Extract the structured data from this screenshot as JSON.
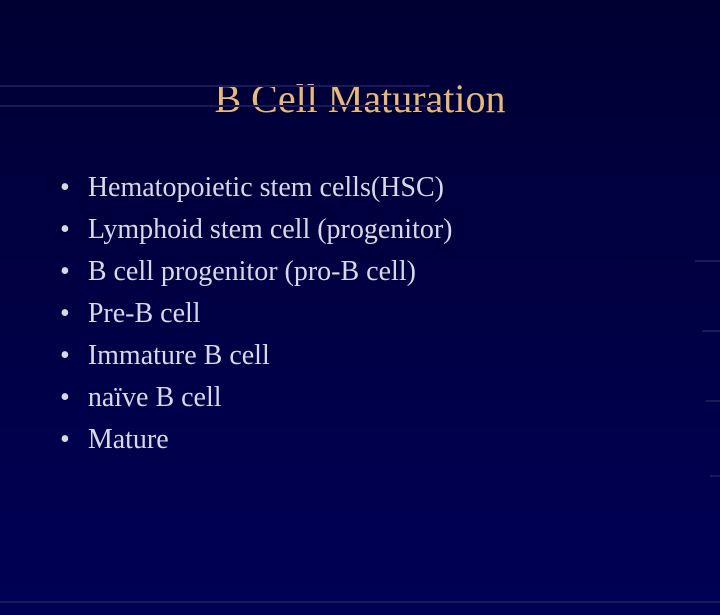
{
  "slide": {
    "title": "B Cell Maturation",
    "bullets": [
      "Hematopoietic stem cells(HSC)",
      "Lymphoid stem cell (progenitor)",
      "B cell progenitor (pro-B cell)",
      "Pre-B cell",
      "Immature B cell",
      "naïve B cell",
      "Mature"
    ]
  },
  "style": {
    "background_gradient": [
      "#000033",
      "#000044",
      "#000055"
    ],
    "title_color": "#e8b878",
    "title_fontsize": 40,
    "text_color": "#d8d8e8",
    "text_fontsize": 28,
    "font_family": "Times New Roman",
    "decorative_line_color": "#1a1a5a"
  }
}
